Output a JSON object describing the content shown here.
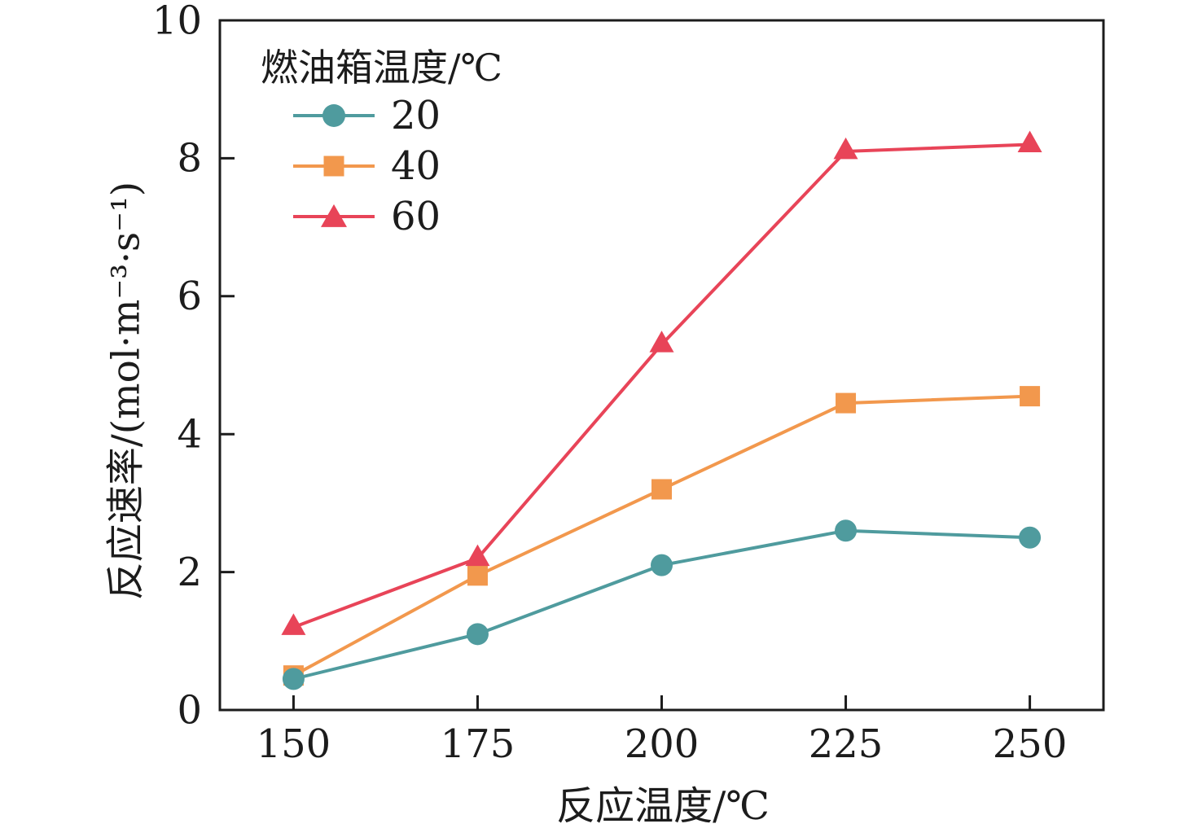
{
  "chart_data": {
    "type": "line",
    "title": "",
    "xlabel": "反应温度/℃",
    "ylabel": "反应速率/(mol·m⁻³·s⁻¹)",
    "xlim": [
      140,
      260
    ],
    "ylim": [
      0,
      10
    ],
    "xticks": [
      "150",
      "175",
      "200",
      "225",
      "250"
    ],
    "yticks": [
      "0",
      "2",
      "4",
      "6",
      "8",
      "10"
    ],
    "grid": false,
    "axis_color": "#1c1c1c",
    "background_color": "#ffffff",
    "legend": {
      "title": "燃油箱温度/℃",
      "position": "upper-left-inside"
    },
    "x": [
      150,
      175,
      200,
      225,
      250
    ],
    "series": [
      {
        "name": "20",
        "marker": "circle",
        "color": "#4f9b9e",
        "values": [
          0.45,
          1.1,
          2.1,
          2.6,
          2.5
        ]
      },
      {
        "name": "40",
        "marker": "square",
        "color": "#f2984d",
        "values": [
          0.5,
          1.95,
          3.2,
          4.45,
          4.55
        ]
      },
      {
        "name": "60",
        "marker": "triangle",
        "color": "#e84458",
        "values": [
          1.2,
          2.2,
          5.3,
          8.1,
          8.2
        ]
      }
    ],
    "draw_order": [
      1,
      0,
      2
    ]
  }
}
